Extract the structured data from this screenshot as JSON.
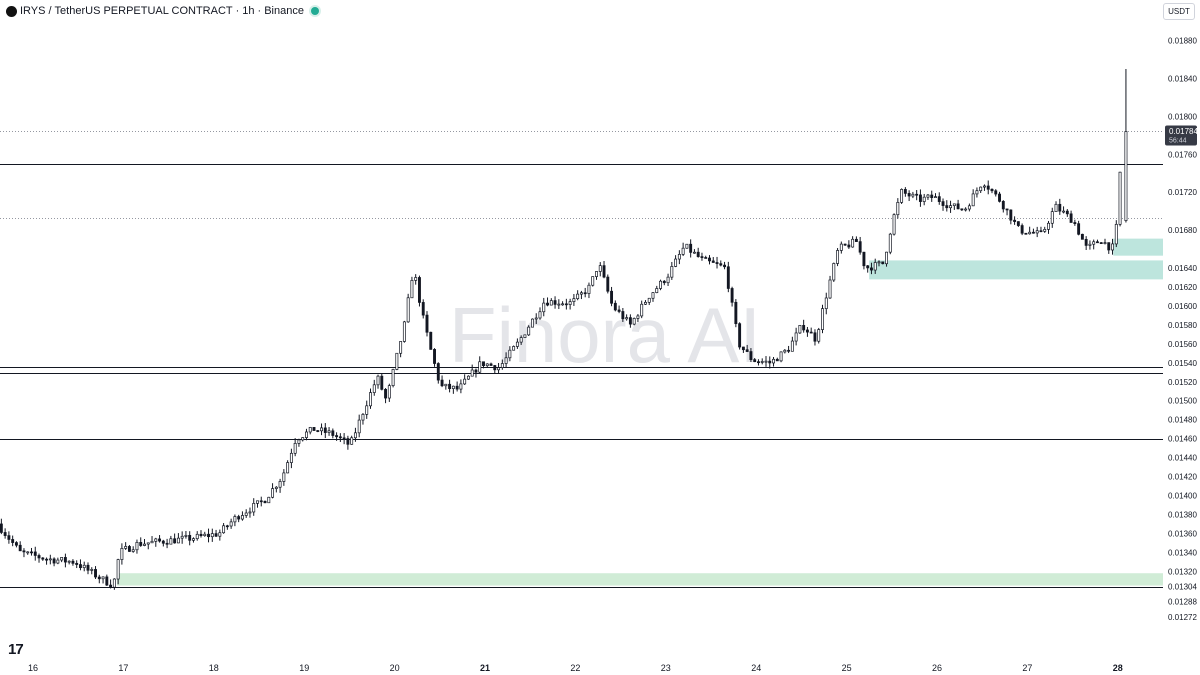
{
  "header": {
    "symbol": "IRYS",
    "separator": "/",
    "contract": "TetherUS PERPETUAL CONTRACT",
    "interval": "1h",
    "exchange": "Binance",
    "status_color": "#22ab94"
  },
  "currency_button": "USDT",
  "watermark": "Finora AI",
  "tv_logo_icon": "tradingview-logo-icon",
  "tv_logo_text": "17",
  "current_price": {
    "value": "0.01784",
    "countdown": "56:44"
  },
  "colors": {
    "candle": "#131722",
    "zone_teal": "#b2e0d7",
    "zone_green": "#c8e9cf",
    "price_tag_bg": "#363a45"
  },
  "chart_data": {
    "type": "candlestick",
    "title": "IRYS / TetherUS PERPETUAL CONTRACT · 1h · Binance",
    "xlabel": "",
    "ylabel": "",
    "ylim": [
      0.01262,
      0.01896
    ],
    "y_ticks": [
      "0.01880",
      "0.01840",
      "0.01800",
      "0.01760",
      "0.01720",
      "0.01680",
      "0.01640",
      "0.01620",
      "0.01600",
      "0.01580",
      "0.01560",
      "0.01540",
      "0.01520",
      "0.01500",
      "0.01480",
      "0.01460",
      "0.01440",
      "0.01420",
      "0.01400",
      "0.01380",
      "0.01360",
      "0.01340",
      "0.01320",
      "0.01304",
      "0.01288",
      "0.01272"
    ],
    "x_ticks": [
      {
        "label": "16",
        "day": 16
      },
      {
        "label": "17",
        "day": 17
      },
      {
        "label": "18",
        "day": 18
      },
      {
        "label": "19",
        "day": 19
      },
      {
        "label": "20",
        "day": 20
      },
      {
        "label": "21",
        "day": 21
      },
      {
        "label": "22",
        "day": 22
      },
      {
        "label": "23",
        "day": 23
      },
      {
        "label": "24",
        "day": 24
      },
      {
        "label": "25",
        "day": 25
      },
      {
        "label": "26",
        "day": 26
      },
      {
        "label": "27",
        "day": 27
      },
      {
        "label": "28",
        "day": 28
      }
    ],
    "horizontal_levels": [
      {
        "price": 0.0175,
        "style": "solid"
      },
      {
        "price": 0.01536,
        "style": "solid"
      },
      {
        "price": 0.01529,
        "style": "solid"
      },
      {
        "price": 0.0146,
        "style": "solid"
      },
      {
        "price": 0.01304,
        "style": "solid"
      },
      {
        "price": 0.01784,
        "style": "dotted"
      },
      {
        "price": 0.01693,
        "style": "dotted"
      }
    ],
    "zones": [
      {
        "from_day": 27.95,
        "to_day": 28.5,
        "low": 0.01653,
        "high": 0.01671,
        "color": "teal"
      },
      {
        "from_day": 25.25,
        "to_day": 28.5,
        "low": 0.01628,
        "high": 0.01648,
        "color": "teal"
      },
      {
        "from_day": 16.93,
        "to_day": 28.5,
        "low": 0.01305,
        "high": 0.01318,
        "color": "green"
      }
    ],
    "path_points": [
      {
        "day": 15.65,
        "price": 0.0137
      },
      {
        "day": 15.9,
        "price": 0.0134
      },
      {
        "day": 16.2,
        "price": 0.01333
      },
      {
        "day": 16.5,
        "price": 0.0133
      },
      {
        "day": 16.8,
        "price": 0.01312
      },
      {
        "day": 16.93,
        "price": 0.01305
      },
      {
        "day": 17.0,
        "price": 0.0134
      },
      {
        "day": 17.2,
        "price": 0.01349
      },
      {
        "day": 17.5,
        "price": 0.01352
      },
      {
        "day": 17.8,
        "price": 0.01355
      },
      {
        "day": 18.1,
        "price": 0.0136
      },
      {
        "day": 18.3,
        "price": 0.01378
      },
      {
        "day": 18.6,
        "price": 0.01395
      },
      {
        "day": 18.8,
        "price": 0.0142
      },
      {
        "day": 18.95,
        "price": 0.0146
      },
      {
        "day": 19.15,
        "price": 0.0147
      },
      {
        "day": 19.35,
        "price": 0.01465
      },
      {
        "day": 19.55,
        "price": 0.01453
      },
      {
        "day": 19.7,
        "price": 0.0149
      },
      {
        "day": 19.85,
        "price": 0.01525
      },
      {
        "day": 19.95,
        "price": 0.015
      },
      {
        "day": 20.0,
        "price": 0.0152
      },
      {
        "day": 20.15,
        "price": 0.0158
      },
      {
        "day": 20.25,
        "price": 0.0164
      },
      {
        "day": 20.35,
        "price": 0.0159
      },
      {
        "day": 20.45,
        "price": 0.0155
      },
      {
        "day": 20.55,
        "price": 0.01515
      },
      {
        "day": 20.75,
        "price": 0.01512
      },
      {
        "day": 21.0,
        "price": 0.0154
      },
      {
        "day": 21.2,
        "price": 0.01535
      },
      {
        "day": 21.4,
        "price": 0.0156
      },
      {
        "day": 21.7,
        "price": 0.01605
      },
      {
        "day": 22.0,
        "price": 0.01603
      },
      {
        "day": 22.2,
        "price": 0.0162
      },
      {
        "day": 22.3,
        "price": 0.01645
      },
      {
        "day": 22.45,
        "price": 0.016
      },
      {
        "day": 22.65,
        "price": 0.0158
      },
      {
        "day": 22.85,
        "price": 0.0161
      },
      {
        "day": 23.05,
        "price": 0.0163
      },
      {
        "day": 23.25,
        "price": 0.01663
      },
      {
        "day": 23.45,
        "price": 0.01648
      },
      {
        "day": 23.7,
        "price": 0.0164
      },
      {
        "day": 23.85,
        "price": 0.0156
      },
      {
        "day": 24.0,
        "price": 0.01543
      },
      {
        "day": 24.2,
        "price": 0.0154
      },
      {
        "day": 24.4,
        "price": 0.01555
      },
      {
        "day": 24.55,
        "price": 0.0158
      },
      {
        "day": 24.7,
        "price": 0.01565
      },
      {
        "day": 24.8,
        "price": 0.01605
      },
      {
        "day": 24.95,
        "price": 0.0166
      },
      {
        "day": 25.15,
        "price": 0.01668
      },
      {
        "day": 25.25,
        "price": 0.0164
      },
      {
        "day": 25.45,
        "price": 0.01645
      },
      {
        "day": 25.55,
        "price": 0.0169
      },
      {
        "day": 25.65,
        "price": 0.0172
      },
      {
        "day": 25.85,
        "price": 0.01712
      },
      {
        "day": 26.0,
        "price": 0.01715
      },
      {
        "day": 26.2,
        "price": 0.01705
      },
      {
        "day": 26.35,
        "price": 0.01702
      },
      {
        "day": 26.55,
        "price": 0.01732
      },
      {
        "day": 26.75,
        "price": 0.0171
      },
      {
        "day": 26.95,
        "price": 0.0168
      },
      {
        "day": 27.2,
        "price": 0.01675
      },
      {
        "day": 27.35,
        "price": 0.01705
      },
      {
        "day": 27.55,
        "price": 0.0169
      },
      {
        "day": 27.7,
        "price": 0.0166
      },
      {
        "day": 27.85,
        "price": 0.0167
      },
      {
        "day": 27.98,
        "price": 0.0166
      },
      {
        "day": 28.04,
        "price": 0.0169
      },
      {
        "day": 28.09,
        "price": 0.01784
      }
    ],
    "last_candle": {
      "day": 28.09,
      "open": 0.0169,
      "high": 0.0185,
      "low": 0.01688,
      "close": 0.01784
    }
  }
}
